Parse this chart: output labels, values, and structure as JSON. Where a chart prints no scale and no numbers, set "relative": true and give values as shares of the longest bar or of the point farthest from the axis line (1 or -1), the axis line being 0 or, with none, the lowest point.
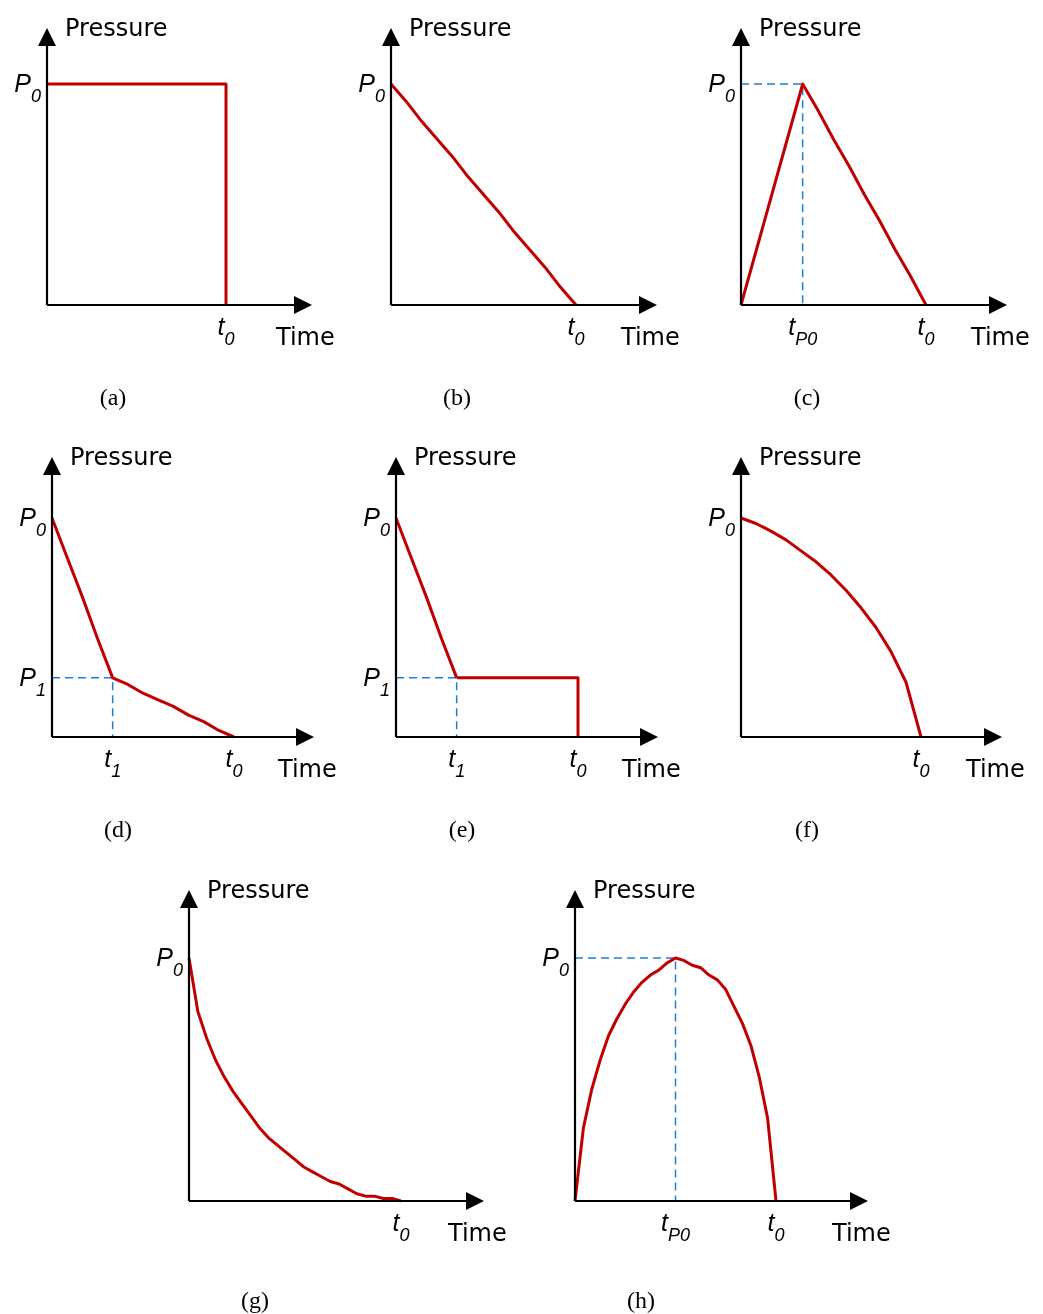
{
  "chart_data": [
    {
      "type": "step",
      "relative": true,
      "title": "(a)",
      "xlabel": "Time",
      "ylabel": "Pressure",
      "categories": [
        null,
        null,
        null,
        null,
        null,
        null,
        null,
        null,
        null,
        null,
        null,
        null,
        null
      ],
      "annotations": [
        "P$_{0}$",
        "t$_{0}$"
      ],
      "series": [
        {
          "color": "#c00000",
          "line_style": "solid",
          "values": [
            1,
            1,
            1,
            1,
            1,
            1,
            1,
            1,
            1,
            1,
            1,
            1,
            0
          ]
        }
      ]
    },
    {
      "type": "line",
      "relative": true,
      "title": "(b)",
      "xlabel": "Time",
      "ylabel": "Pressure",
      "categories": [
        null,
        null,
        null,
        null,
        null,
        null,
        null,
        null,
        null,
        null,
        null,
        null,
        null
      ],
      "annotations": [
        "P$_{0}$",
        "t$_{0}$"
      ],
      "series": [
        {
          "color": "#c00000",
          "line_style": "solid",
          "values": [
            1,
            0.92,
            0.83,
            0.75,
            0.67,
            0.58,
            0.5,
            0.42,
            0.33,
            0.25,
            0.17,
            0.08,
            0
          ]
        }
      ]
    },
    {
      "type": "line",
      "relative": true,
      "title": "(c)",
      "xlabel": "Time",
      "ylabel": "Pressure",
      "categories": [
        null,
        null,
        null,
        null,
        "t$_{P0}$",
        null,
        null,
        null,
        null,
        null,
        null,
        null,
        "t$_{0}$"
      ],
      "annotations": [
        "P$_{0}$"
      ],
      "series": [
        {
          "type": "step",
          "color": "#1f7fd0",
          "line_style": "dashed",
          "values": [
            1,
            1,
            1,
            1,
            0,
            null,
            null,
            null,
            null,
            null,
            null,
            null,
            null
          ]
        },
        {
          "color": "#c00000",
          "line_style": "solid",
          "values": [
            0,
            0.25,
            0.5,
            0.75,
            1,
            0.88,
            0.75,
            0.63,
            0.5,
            0.38,
            0.25,
            0.13,
            0
          ]
        }
      ]
    },
    {
      "type": "line",
      "relative": true,
      "title": "(d)",
      "xlabel": "Time",
      "ylabel": "Pressure",
      "categories": [
        null,
        null,
        null,
        null,
        "t$_{1}$",
        null,
        null,
        null,
        null,
        null,
        null,
        null,
        "t$_{0}$"
      ],
      "annotations": [
        "P$_{0}$",
        "P$_{1}$"
      ],
      "series": [
        {
          "type": "step",
          "color": "#1f7fd0",
          "line_style": "dashed",
          "values": [
            0.27,
            0.27,
            0.27,
            0.27,
            0,
            null,
            null,
            null,
            null,
            null,
            null,
            null,
            null
          ]
        },
        {
          "color": "#c00000",
          "line_style": "solid",
          "values": [
            1,
            0.82,
            0.64,
            0.45,
            0.27,
            0.24,
            0.2,
            0.17,
            0.14,
            0.1,
            0.07,
            0.03,
            0
          ]
        }
      ]
    },
    {
      "type": "line",
      "relative": true,
      "title": "(e)",
      "xlabel": "Time",
      "ylabel": "Pressure",
      "categories": [
        null,
        null,
        null,
        null,
        "t$_{1}$",
        null,
        null,
        null,
        null,
        null,
        null,
        null,
        "t$_{0}$"
      ],
      "annotations": [
        "P$_{0}$",
        "P$_{1}$"
      ],
      "series": [
        {
          "type": "step",
          "color": "#1f7fd0",
          "line_style": "dashed",
          "values": [
            0.27,
            0.27,
            0.27,
            0.27,
            0,
            null,
            null,
            null,
            null,
            null,
            null,
            null,
            null
          ]
        },
        {
          "color": "#c00000",
          "line_style": "solid",
          "values": [
            1,
            0.82,
            0.64,
            0.45,
            0.27,
            null,
            null,
            null,
            null,
            null,
            null,
            null,
            null
          ]
        },
        {
          "type": "step",
          "color": "#c00000",
          "line_style": "solid",
          "values": [
            null,
            null,
            null,
            null,
            0.27,
            0.27,
            0.27,
            0.27,
            0.27,
            0.27,
            0.27,
            0.27,
            0
          ]
        }
      ]
    },
    {
      "type": "line",
      "relative": true,
      "title": "(f)",
      "xlabel": "Time",
      "ylabel": "Pressure",
      "categories": [
        null,
        null,
        null,
        null,
        null,
        null,
        null,
        null,
        null,
        null,
        null,
        null,
        null
      ],
      "annotations": [
        "P$_{0}$",
        "t$_{0}$"
      ],
      "series": [
        {
          "color": "#c00000",
          "line_style": "solid",
          "values": [
            1,
            0.975,
            0.94,
            0.9,
            0.85,
            0.8,
            0.74,
            0.67,
            0.59,
            0.5,
            0.39,
            0.25,
            0
          ]
        }
      ]
    },
    {
      "type": "line",
      "relative": true,
      "title": "(g)",
      "xlabel": "Time",
      "ylabel": "Pressure",
      "categories": [
        null,
        null,
        null,
        null,
        null,
        null,
        null,
        null,
        null,
        null,
        null,
        null,
        null,
        null,
        null,
        null,
        null,
        null,
        null,
        null,
        null,
        null,
        null,
        null,
        null
      ],
      "annotations": [
        "P$_{0}$",
        "t$_{0}$"
      ],
      "series": [
        {
          "color": "#c00000",
          "line_style": "solid",
          "values": [
            1,
            0.78,
            0.67,
            0.58,
            0.51,
            0.45,
            0.4,
            0.35,
            0.3,
            0.26,
            0.23,
            0.2,
            0.17,
            0.14,
            0.12,
            0.1,
            0.08,
            0.07,
            0.05,
            0.03,
            0.02,
            0.02,
            0.01,
            0.01,
            0
          ]
        }
      ]
    },
    {
      "type": "line",
      "relative": true,
      "title": "(h)",
      "xlabel": "Time",
      "ylabel": "Pressure",
      "categories": [
        null,
        null,
        null,
        null,
        null,
        null,
        null,
        null,
        null,
        null,
        null,
        null,
        "t$_{P0}$",
        null,
        null,
        null,
        null,
        null,
        null,
        null,
        null,
        null,
        null,
        null,
        "t$_{0}$"
      ],
      "annotations": [
        "P$_{0}$"
      ],
      "series": [
        {
          "type": "step",
          "color": "#1f7fd0",
          "line_style": "dashed",
          "values": [
            1,
            1,
            1,
            1,
            1,
            1,
            1,
            1,
            1,
            1,
            1,
            1,
            0,
            null,
            null,
            null,
            null,
            null,
            null,
            null,
            null,
            null,
            null,
            null,
            null
          ]
        },
        {
          "color": "#c00000",
          "line_style": "solid",
          "values": [
            0,
            0.3,
            0.46,
            0.58,
            0.68,
            0.75,
            0.81,
            0.86,
            0.9,
            0.93,
            0.95,
            0.98,
            1,
            0.99,
            0.97,
            0.96,
            0.93,
            0.91,
            0.87,
            0.8,
            0.73,
            0.64,
            0.51,
            0.34,
            0
          ]
        }
      ]
    }
  ]
}
